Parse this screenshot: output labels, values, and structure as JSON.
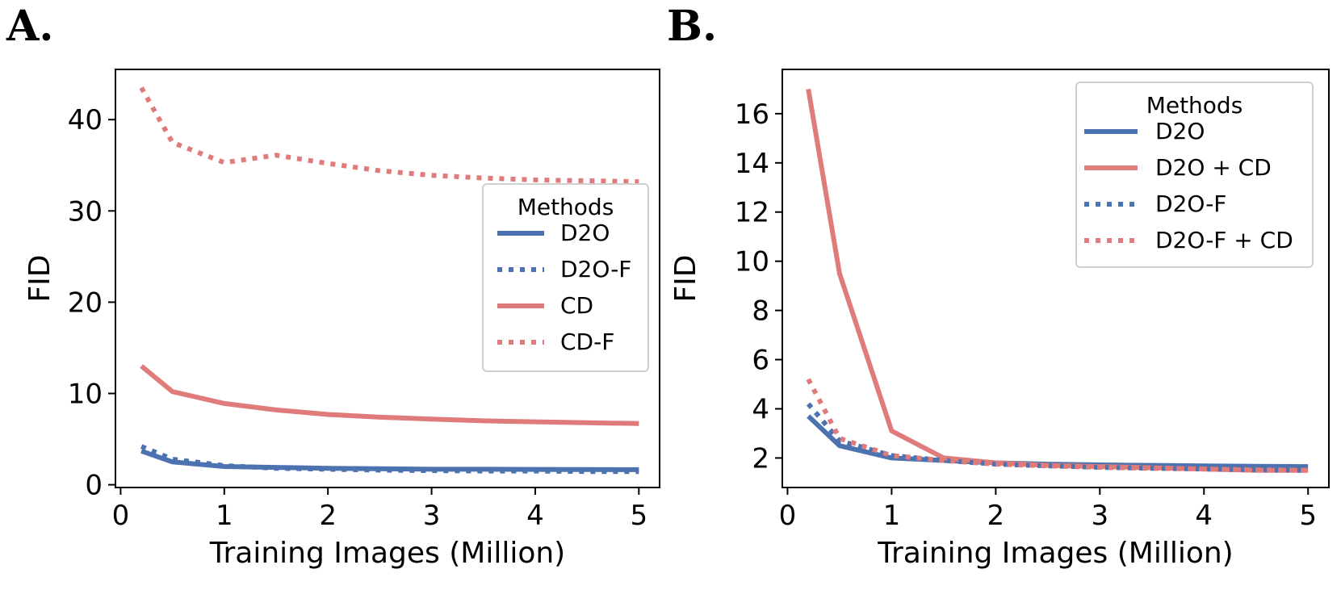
{
  "colors": {
    "blue": "#4c72b0",
    "red": "#e07b7b"
  },
  "chart_data": [
    {
      "panel_label": "A.",
      "type": "line",
      "xlabel": "Training Images (Million)",
      "ylabel": "FID",
      "xlim": [
        -0.05,
        5.2
      ],
      "ylim": [
        -0.3,
        45.5
      ],
      "xticks": [
        0,
        1,
        2,
        3,
        4,
        5
      ],
      "yticks": [
        0,
        10,
        20,
        30,
        40
      ],
      "legend": {
        "title": "Methods",
        "placement": "center-right"
      },
      "series": [
        {
          "name": "D2O",
          "style": "solid",
          "color": "blue",
          "x": [
            0.2,
            0.5,
            1,
            1.5,
            2,
            2.5,
            3,
            3.5,
            4,
            4.5,
            5
          ],
          "y": [
            3.7,
            2.5,
            2.0,
            1.9,
            1.8,
            1.75,
            1.7,
            1.7,
            1.68,
            1.66,
            1.65
          ]
        },
        {
          "name": "D2O-F",
          "style": "dotted",
          "color": "blue",
          "x": [
            0.2,
            0.5,
            1,
            1.5,
            2,
            2.5,
            3,
            3.5,
            4,
            4.5,
            5
          ],
          "y": [
            4.2,
            2.8,
            2.1,
            1.8,
            1.7,
            1.6,
            1.55,
            1.5,
            1.5,
            1.45,
            1.45
          ]
        },
        {
          "name": "CD",
          "style": "solid",
          "color": "red",
          "x": [
            0.2,
            0.5,
            1,
            1.5,
            2,
            2.5,
            3,
            3.5,
            4,
            4.5,
            5
          ],
          "y": [
            13.0,
            10.2,
            8.9,
            8.2,
            7.7,
            7.4,
            7.2,
            7.0,
            6.9,
            6.8,
            6.7
          ]
        },
        {
          "name": "CD-F",
          "style": "dotted",
          "color": "red",
          "x": [
            0.2,
            0.5,
            1,
            1.5,
            2,
            2.5,
            3,
            3.5,
            4,
            4.5,
            5
          ],
          "y": [
            43.5,
            37.5,
            35.3,
            36.1,
            35.2,
            34.4,
            33.9,
            33.6,
            33.4,
            33.3,
            33.2
          ]
        }
      ]
    },
    {
      "panel_label": "B.",
      "type": "line",
      "xlabel": "Training Images (Million)",
      "ylabel": "FID",
      "xlim": [
        -0.05,
        5.2
      ],
      "ylim": [
        0.8,
        17.8
      ],
      "xticks": [
        0,
        1,
        2,
        3,
        4,
        5
      ],
      "yticks": [
        2,
        4,
        6,
        8,
        10,
        12,
        14,
        16
      ],
      "legend": {
        "title": "Methods",
        "placement": "top-right"
      },
      "series": [
        {
          "name": "D2O",
          "style": "solid",
          "color": "blue",
          "x": [
            0.2,
            0.5,
            1,
            1.5,
            2,
            2.5,
            3,
            3.5,
            4,
            4.5,
            5
          ],
          "y": [
            3.7,
            2.5,
            2.0,
            1.9,
            1.8,
            1.75,
            1.72,
            1.7,
            1.68,
            1.66,
            1.65
          ]
        },
        {
          "name": "D2O + CD",
          "style": "solid",
          "color": "red",
          "x": [
            0.2,
            0.5,
            1,
            1.5,
            2,
            2.5,
            3,
            3.5,
            4,
            4.5,
            5
          ],
          "y": [
            17.0,
            9.5,
            3.1,
            2.0,
            1.8,
            1.7,
            1.65,
            1.6,
            1.55,
            1.5,
            1.5
          ]
        },
        {
          "name": "D2O-F",
          "style": "dotted",
          "color": "blue",
          "x": [
            0.2,
            0.5,
            1,
            1.5,
            2,
            2.5,
            3,
            3.5,
            4,
            4.5,
            5
          ],
          "y": [
            4.2,
            2.7,
            2.1,
            1.9,
            1.75,
            1.68,
            1.62,
            1.58,
            1.55,
            1.52,
            1.5
          ]
        },
        {
          "name": "D2O-F + CD",
          "style": "dotted",
          "color": "red",
          "x": [
            0.2,
            0.5,
            1,
            1.5,
            2,
            2.5,
            3,
            3.5,
            4,
            4.5,
            5
          ],
          "y": [
            5.2,
            2.8,
            2.1,
            1.9,
            1.75,
            1.68,
            1.62,
            1.58,
            1.55,
            1.52,
            1.5
          ]
        }
      ]
    }
  ]
}
